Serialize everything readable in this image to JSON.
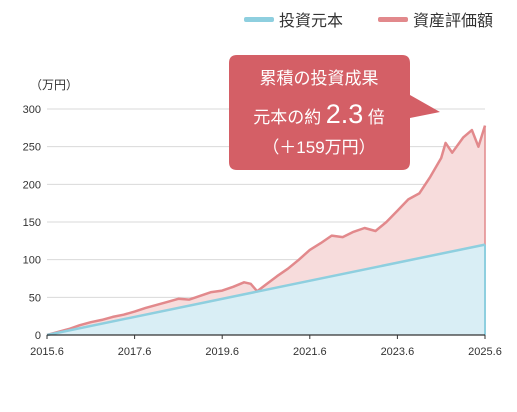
{
  "chart_data": {
    "type": "area",
    "unit_label": "（万円）",
    "x_tick_labels": [
      "2015.6",
      "2017.6",
      "2019.6",
      "2021.6",
      "2023.6",
      "2025.6"
    ],
    "y_ticks": [
      0,
      50,
      100,
      150,
      200,
      250,
      300
    ],
    "ylim": [
      0,
      300
    ],
    "xlim": [
      2015.5,
      2025.5
    ],
    "grid": true,
    "legend_position": "top-right",
    "colors": {
      "principal_line": "#8ecfdf",
      "principal_fill": "#d9eef5",
      "value_line": "#e2898c",
      "value_fill": "#f7dcdc",
      "callout": "#d45f66",
      "grid": "#d9d9d9",
      "axis": "#333333"
    },
    "series": [
      {
        "name": "投資元本",
        "x": [
          2015.5,
          2025.5
        ],
        "values": [
          0,
          120
        ]
      },
      {
        "name": "資産評価額",
        "x": [
          2015.5,
          2015.75,
          2016.0,
          2016.25,
          2016.5,
          2016.75,
          2017.0,
          2017.25,
          2017.5,
          2017.75,
          2018.0,
          2018.25,
          2018.5,
          2018.75,
          2019.0,
          2019.25,
          2019.5,
          2019.75,
          2020.0,
          2020.15,
          2020.3,
          2020.5,
          2020.75,
          2021.0,
          2021.25,
          2021.5,
          2021.75,
          2022.0,
          2022.25,
          2022.5,
          2022.75,
          2023.0,
          2023.25,
          2023.5,
          2023.75,
          2024.0,
          2024.25,
          2024.5,
          2024.6,
          2024.75,
          2025.0,
          2025.2,
          2025.35,
          2025.5
        ],
        "values": [
          0,
          4,
          8,
          13,
          17,
          20,
          24,
          27,
          31,
          36,
          40,
          44,
          48,
          47,
          52,
          57,
          59,
          64,
          70,
          68,
          58,
          67,
          78,
          88,
          100,
          113,
          122,
          132,
          130,
          137,
          142,
          138,
          150,
          165,
          180,
          188,
          210,
          235,
          255,
          242,
          262,
          272,
          250,
          278
        ]
      }
    ]
  },
  "legend": [
    {
      "label": "投資元本"
    },
    {
      "label": "資産評価額"
    }
  ],
  "callout": {
    "line1": "累積の投資成果",
    "line2_prefix": "元本の約",
    "line2_number": "2.3",
    "line2_suffix": "倍",
    "line3": "（＋159万円）"
  }
}
